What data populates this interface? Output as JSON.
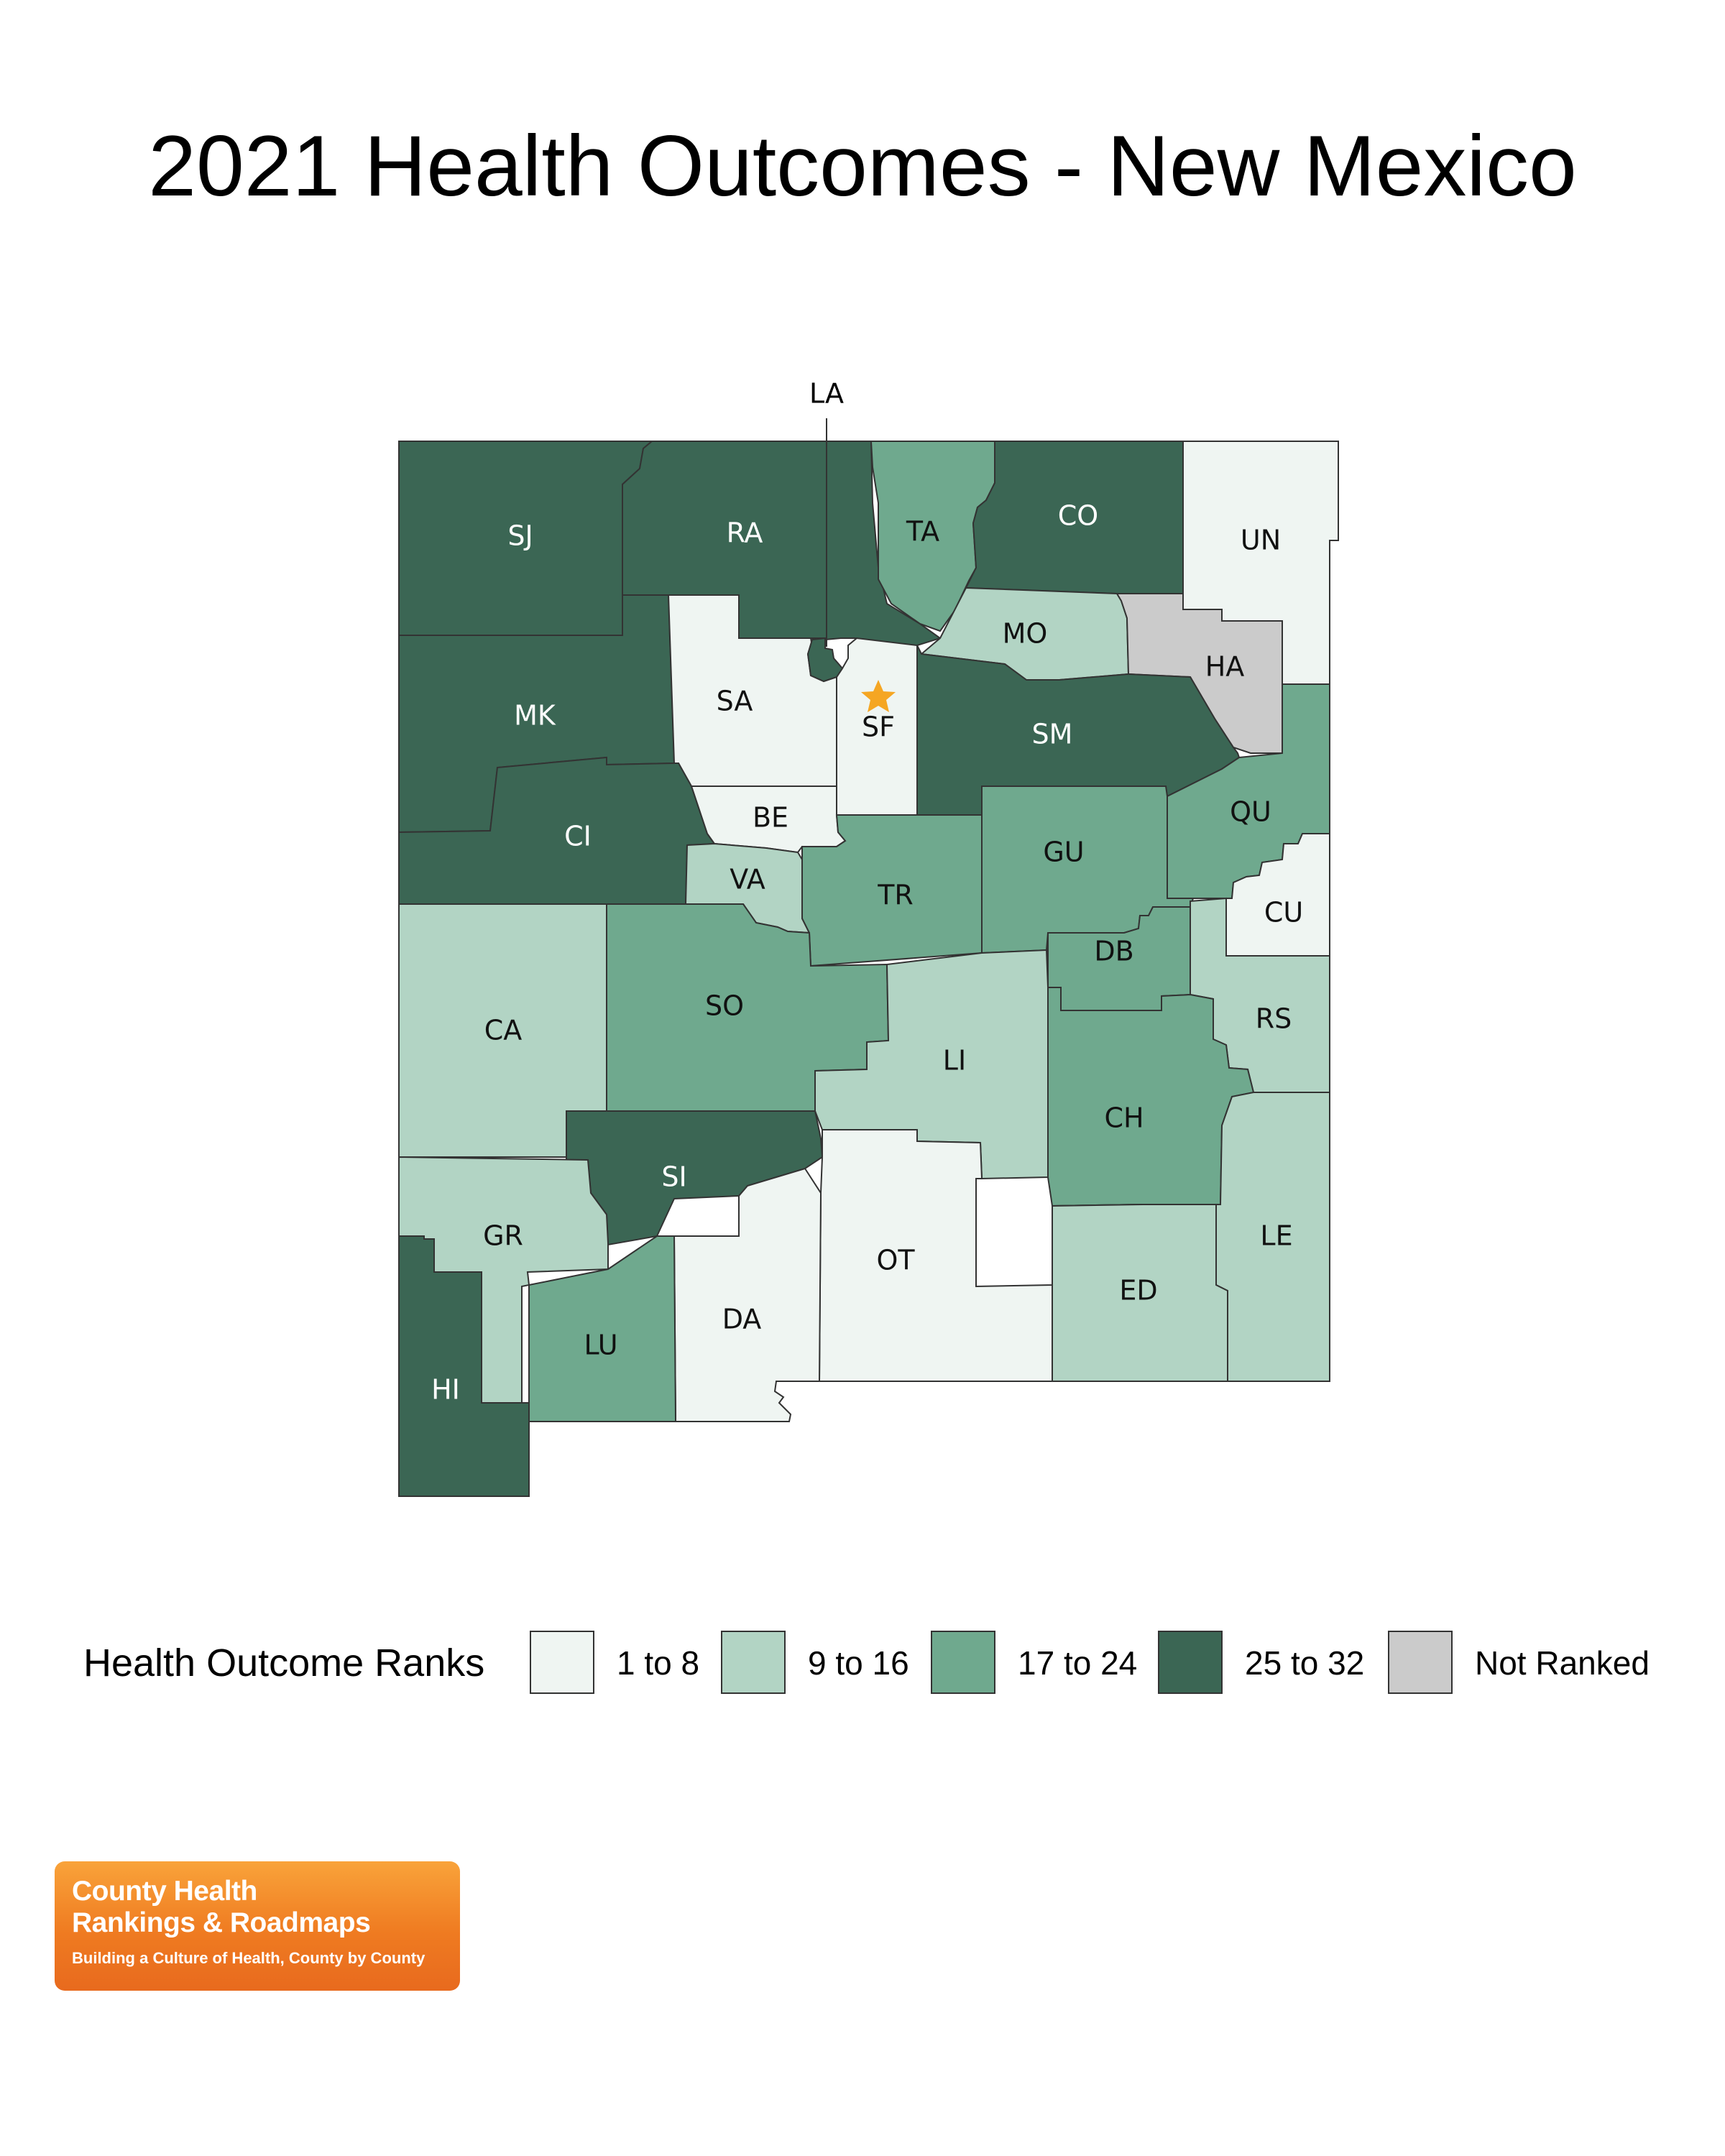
{
  "title": "2021 Health Outcomes - New Mexico",
  "legend": {
    "title": "Health Outcome Ranks",
    "items": [
      {
        "label": "1 to 8",
        "color": "#eff5f2"
      },
      {
        "label": "9 to 16",
        "color": "#b2d4c4"
      },
      {
        "label": "17 to 24",
        "color": "#6fa98e"
      },
      {
        "label": "25 to 32",
        "color": "#3b6654"
      },
      {
        "label": "Not Ranked",
        "color": "#cbcbcb"
      }
    ]
  },
  "capital_marker": "star-icon",
  "capital_color": "#f5a623",
  "counties": [
    {
      "abbr": "SJ",
      "rank_group": "25 to 32"
    },
    {
      "abbr": "RA",
      "rank_group": "25 to 32"
    },
    {
      "abbr": "LA",
      "rank_group": "25 to 32"
    },
    {
      "abbr": "TA",
      "rank_group": "17 to 24"
    },
    {
      "abbr": "CO",
      "rank_group": "25 to 32"
    },
    {
      "abbr": "UN",
      "rank_group": "1 to 8"
    },
    {
      "abbr": "MO",
      "rank_group": "9 to 16"
    },
    {
      "abbr": "HA",
      "rank_group": "Not Ranked"
    },
    {
      "abbr": "MK",
      "rank_group": "25 to 32"
    },
    {
      "abbr": "SA",
      "rank_group": "1 to 8"
    },
    {
      "abbr": "SF",
      "rank_group": "1 to 8"
    },
    {
      "abbr": "SM",
      "rank_group": "25 to 32"
    },
    {
      "abbr": "CI",
      "rank_group": "25 to 32"
    },
    {
      "abbr": "BE",
      "rank_group": "1 to 8"
    },
    {
      "abbr": "QU",
      "rank_group": "17 to 24"
    },
    {
      "abbr": "VA",
      "rank_group": "9 to 16"
    },
    {
      "abbr": "TR",
      "rank_group": "17 to 24"
    },
    {
      "abbr": "GU",
      "rank_group": "17 to 24"
    },
    {
      "abbr": "CU",
      "rank_group": "1 to 8"
    },
    {
      "abbr": "DB",
      "rank_group": "17 to 24"
    },
    {
      "abbr": "CA",
      "rank_group": "9 to 16"
    },
    {
      "abbr": "SO",
      "rank_group": "17 to 24"
    },
    {
      "abbr": "LI",
      "rank_group": "9 to 16"
    },
    {
      "abbr": "RS",
      "rank_group": "9 to 16"
    },
    {
      "abbr": "CH",
      "rank_group": "17 to 24"
    },
    {
      "abbr": "SI",
      "rank_group": "25 to 32"
    },
    {
      "abbr": "GR",
      "rank_group": "9 to 16"
    },
    {
      "abbr": "OT",
      "rank_group": "1 to 8"
    },
    {
      "abbr": "LE",
      "rank_group": "9 to 16"
    },
    {
      "abbr": "ED",
      "rank_group": "9 to 16"
    },
    {
      "abbr": "DA",
      "rank_group": "1 to 8"
    },
    {
      "abbr": "LU",
      "rank_group": "17 to 24"
    },
    {
      "abbr": "HI",
      "rank_group": "25 to 32"
    }
  ],
  "logo": {
    "line1": "County Health",
    "line2": "Rankings & Roadmaps",
    "tagline": "Building a Culture of Health, County by County"
  }
}
